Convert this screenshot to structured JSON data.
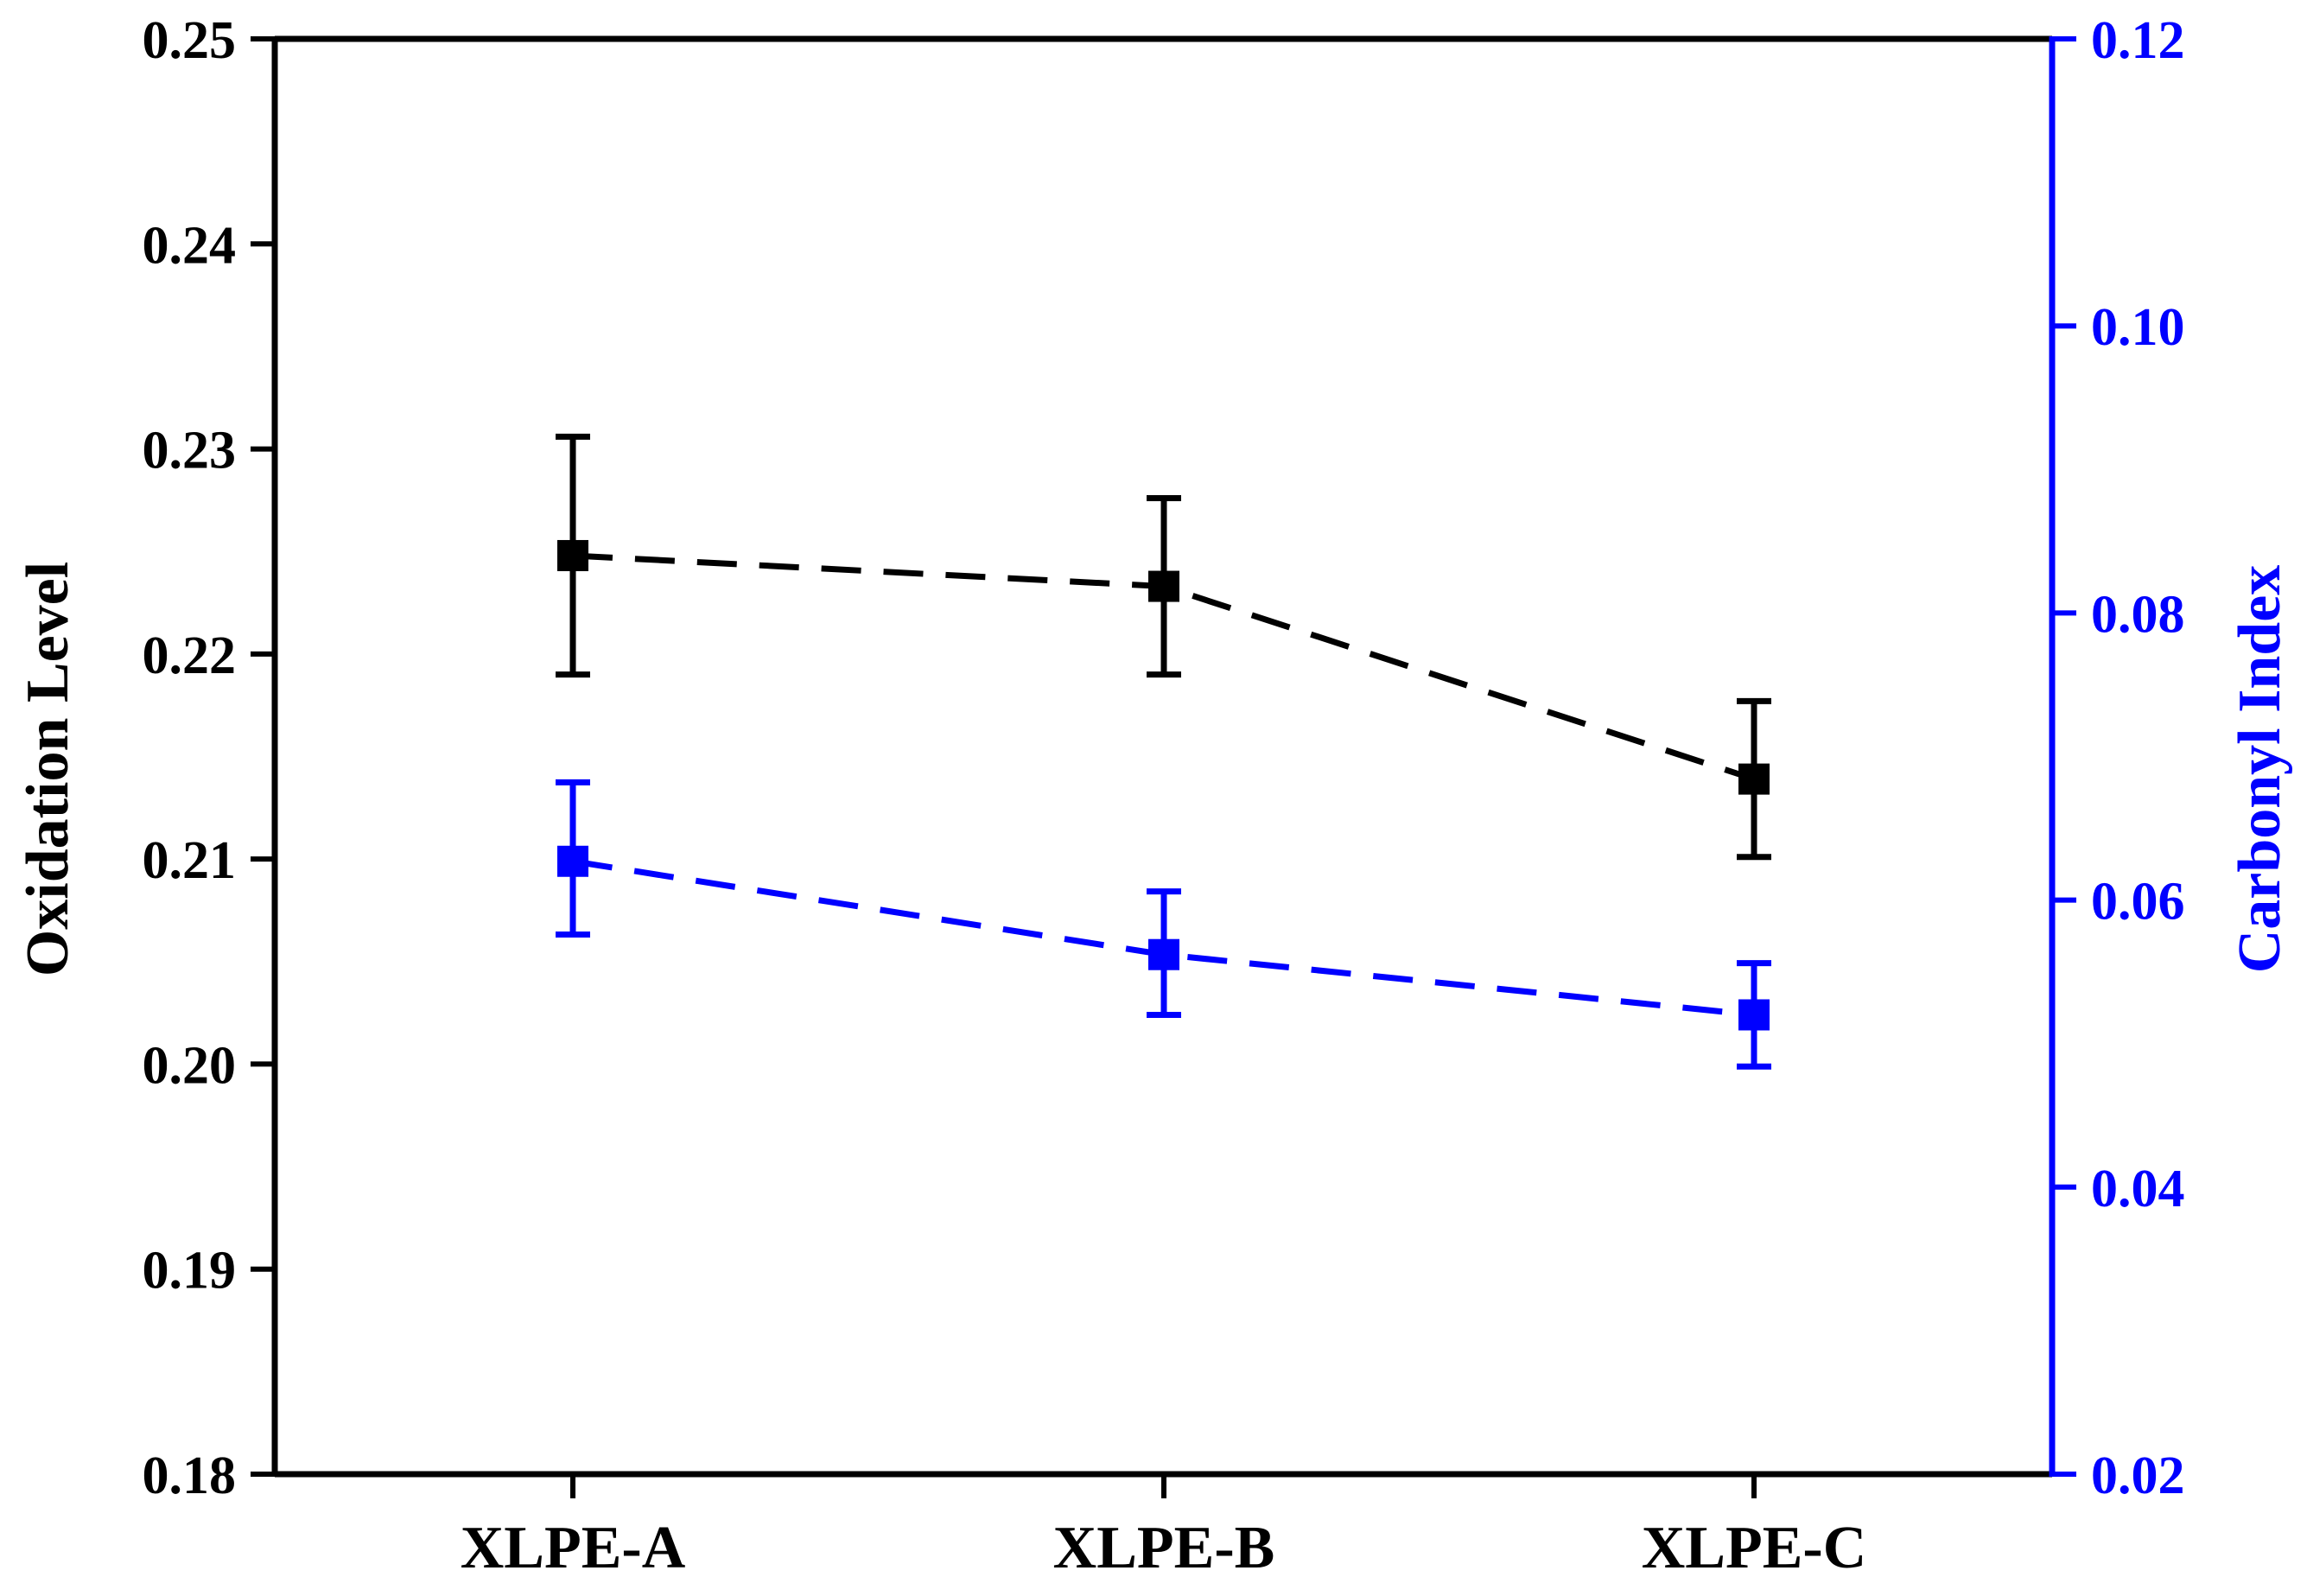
{
  "chart_data": {
    "type": "line",
    "categories": [
      "XLPE-A",
      "XLPE-B",
      "XLPE-C"
    ],
    "left_axis": {
      "label": "Oxidation Level",
      "range": [
        0.18,
        0.25
      ],
      "ticks": [
        "0.18",
        "0.19",
        "0.20",
        "0.21",
        "0.22",
        "0.23",
        "0.24",
        "0.25"
      ],
      "color": "#000000"
    },
    "right_axis": {
      "label": "Carbonyl Index",
      "range": [
        0.02,
        0.12
      ],
      "ticks": [
        "0.02",
        "0.04",
        "0.06",
        "0.08",
        "0.10",
        "0.12"
      ],
      "color": "#0000ff"
    },
    "series": [
      {
        "axis": "left",
        "color": "#000000",
        "values": [
          0.2248,
          0.2233,
          0.2139
        ],
        "error_low": [
          0.219,
          0.219,
          0.2101
        ],
        "error_high": [
          0.2306,
          0.2276,
          0.2177
        ],
        "line_style": "dashed",
        "marker": "square"
      },
      {
        "axis": "right",
        "color": "#0000ff",
        "values": [
          0.0627,
          0.0562,
          0.052
        ],
        "error_low": [
          0.0576,
          0.052,
          0.0484
        ],
        "error_high": [
          0.0682,
          0.0606,
          0.0556
        ],
        "line_style": "dashed",
        "marker": "square"
      }
    ],
    "grid": false,
    "legend": "none"
  }
}
